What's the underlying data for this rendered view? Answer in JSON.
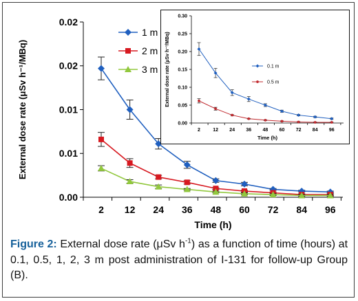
{
  "chart_data": [
    {
      "type": "line",
      "id": "main",
      "title": "",
      "xlabel": "Time (h)",
      "ylabel": "External dose rate (μSv h⁻¹/MBq)",
      "categories": [
        "2",
        "12",
        "24",
        "36",
        "48",
        "60",
        "72",
        "84",
        "96"
      ],
      "y_tick_labels": [
        "0.00",
        "0.01",
        "0.01",
        "0.02",
        "0.02"
      ],
      "y_tick_values": [
        0,
        0.005,
        0.01,
        0.015,
        0.02
      ],
      "ylim": [
        0,
        0.02
      ],
      "grid": false,
      "legend_position": "top-right",
      "series": [
        {
          "name": "1 m",
          "color": "#1f5fbf",
          "marker": "diamond",
          "values": [
            0.0147,
            0.01,
            0.0061,
            0.0037,
            0.0019,
            0.0015,
            0.0009,
            0.0007,
            0.0006
          ],
          "errors": [
            0.0013,
            0.0011,
            0.0006,
            0.0004,
            0.0002,
            0.0002,
            0.0001,
            0.0001,
            0.0001
          ]
        },
        {
          "name": "2 m",
          "color": "#d71920",
          "marker": "square",
          "values": [
            0.0066,
            0.0039,
            0.0023,
            0.0017,
            0.001,
            0.0007,
            0.0005,
            0.0003,
            0.0003
          ],
          "errors": [
            0.0008,
            0.0005,
            0.0002,
            0.0002,
            0.0001,
            0.0001,
            0.0001,
            0.0001,
            0.0001
          ]
        },
        {
          "name": "3 m",
          "color": "#92c83e",
          "marker": "triangle",
          "values": [
            0.0033,
            0.0018,
            0.0012,
            0.0009,
            0.0006,
            0.0004,
            0.0003,
            0.0002,
            0.0002
          ],
          "errors": [
            0.0003,
            0.0002,
            0.0002,
            0.0001,
            0.0001,
            0.0001,
            0.0001,
            0.0001,
            0.0001
          ]
        }
      ]
    },
    {
      "type": "line",
      "id": "inset",
      "title": "",
      "xlabel": "Time (h)",
      "ylabel": "External dose rate (μSv h⁻¹/MBq)",
      "categories": [
        "2",
        "12",
        "24",
        "36",
        "48",
        "60",
        "72",
        "84",
        "96"
      ],
      "y_tick_labels": [
        "0.00",
        "0.05",
        "0.10",
        "0.15",
        "0.20",
        "0.25",
        "0.30"
      ],
      "y_tick_values": [
        0,
        0.05,
        0.1,
        0.15,
        0.2,
        0.25,
        0.3
      ],
      "ylim": [
        0,
        0.3
      ],
      "grid": false,
      "legend_position": "right",
      "series": [
        {
          "name": "0.1 m",
          "color": "#1f5fbf",
          "marker": "diamond",
          "values": [
            0.207,
            0.14,
            0.085,
            0.067,
            0.05,
            0.033,
            0.022,
            0.017,
            0.012
          ],
          "errors": [
            0.018,
            0.013,
            0.008,
            0.007,
            0.004,
            0.003,
            0.002,
            0.002,
            0.002
          ]
        },
        {
          "name": "0.5 m",
          "color": "#c0282d",
          "marker": "circle",
          "values": [
            0.062,
            0.04,
            0.022,
            0.012,
            0.008,
            0.005,
            0.003,
            0.002,
            0.002
          ],
          "errors": [
            0.006,
            0.004,
            0.002,
            0.001,
            0.001,
            0.001,
            0.001,
            0.001,
            0.001
          ]
        }
      ]
    }
  ],
  "caption": {
    "label": "Figure 2:",
    "text_before_sup": " External dose rate (μSv h",
    "sup": "-1",
    "text_after_sup": ") as a function of time (hours) at 0.1, 0.5, 1, 2, 3 m post administration of I-131 for follow-up Group (B)."
  }
}
